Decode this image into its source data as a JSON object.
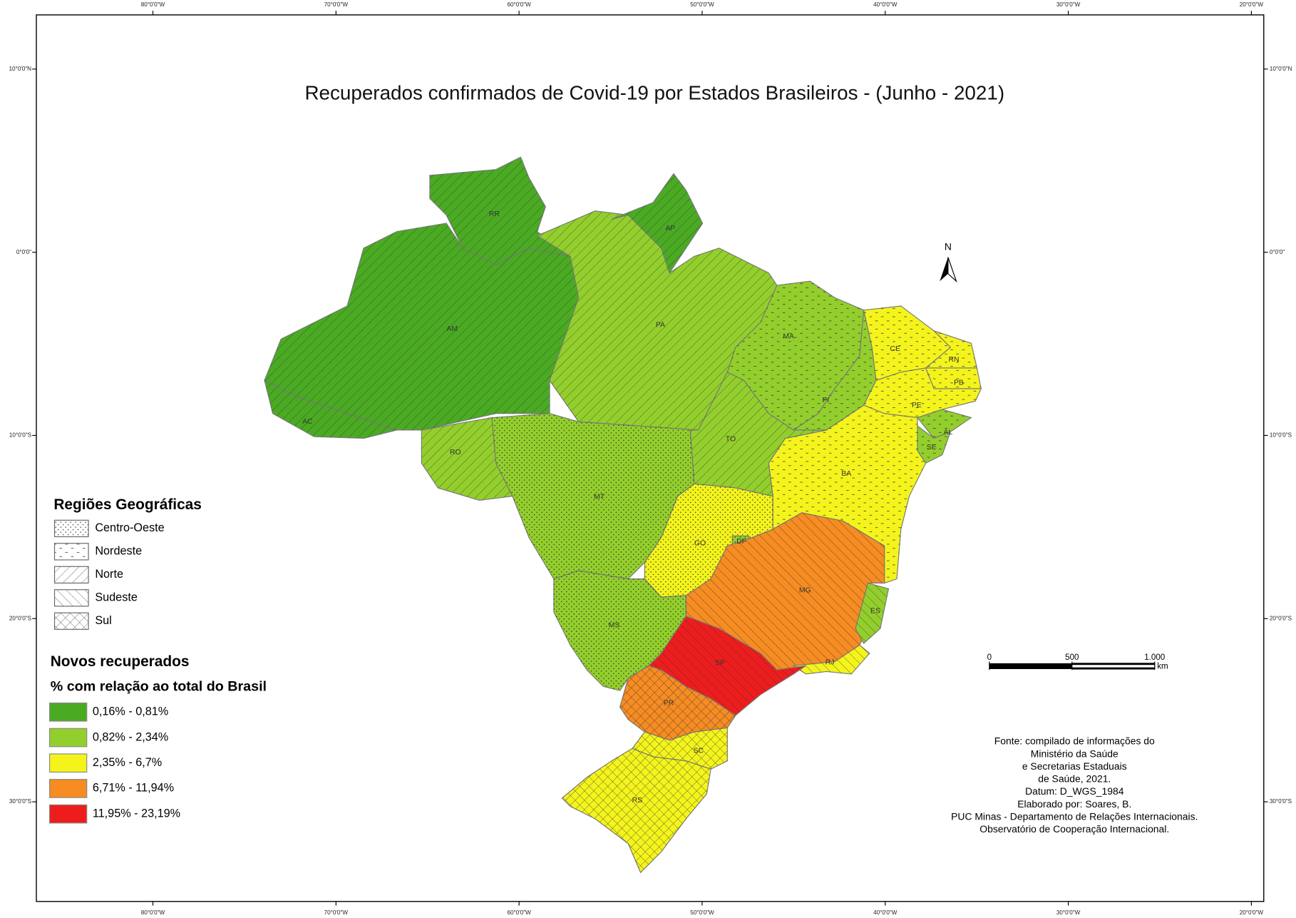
{
  "title": "Recuperados confirmados de Covid-19 por Estados Brasileiros - (Junho - 2021)",
  "graticule": {
    "longitudes": [
      {
        "value": -80,
        "label": "80°0'0\"W"
      },
      {
        "value": -70,
        "label": "70°0'0\"W"
      },
      {
        "value": -60,
        "label": "60°0'0\"W"
      },
      {
        "value": -50,
        "label": "50°0'0\"W"
      },
      {
        "value": -40,
        "label": "40°0'0\"W"
      },
      {
        "value": -30,
        "label": "30°0'0\"W"
      },
      {
        "value": -20,
        "label": "20°0'0\"W"
      }
    ],
    "latitudes": [
      {
        "value": 10,
        "label": "10°0'0\"N"
      },
      {
        "value": 0,
        "label": "0°0'0\""
      },
      {
        "value": -10,
        "label": "10°0'0\"S"
      },
      {
        "value": -20,
        "label": "20°0'0\"S"
      },
      {
        "value": -30,
        "label": "30°0'0\"S"
      }
    ]
  },
  "regions_legend": {
    "title": "Regiões Geográficas",
    "regions": [
      "Centro-Oeste",
      "Nordeste",
      "Norte",
      "Sudeste",
      "Sul"
    ]
  },
  "classes_legend": {
    "title": "Novos recuperados",
    "subtitle": "% com relação ao total do Brasil",
    "classes": [
      {
        "label": "0,16% - 0,81%",
        "color": "#4aab23"
      },
      {
        "label": "0,82% - 2,34%",
        "color": "#93cf2c"
      },
      {
        "label": "2,35% - 6,7%",
        "color": "#f4f41c"
      },
      {
        "label": "6,71% - 11,94%",
        "color": "#f68c22"
      },
      {
        "label": "11,95% - 23,19%",
        "color": "#ee1d1d"
      }
    ]
  },
  "states": [
    {
      "label": "RR",
      "class": 0,
      "region": 2
    },
    {
      "label": "AM",
      "class": 0,
      "region": 2
    },
    {
      "label": "AC",
      "class": 0,
      "region": 2
    },
    {
      "label": "PA",
      "class": 1,
      "region": 2
    },
    {
      "label": "AP",
      "class": 0,
      "region": 2
    },
    {
      "label": "MA",
      "class": 1,
      "region": 1
    },
    {
      "label": "PI",
      "class": 1,
      "region": 1
    },
    {
      "label": "CE",
      "class": 2,
      "region": 1
    },
    {
      "label": "RN",
      "class": 2,
      "region": 1
    },
    {
      "label": "PB",
      "class": 2,
      "region": 1
    },
    {
      "label": "PE",
      "class": 2,
      "region": 1
    },
    {
      "label": "AL",
      "class": 1,
      "region": 1
    },
    {
      "label": "SE",
      "class": 1,
      "region": 1
    },
    {
      "label": "BA",
      "class": 2,
      "region": 1
    },
    {
      "label": "TO",
      "class": 1,
      "region": 2
    },
    {
      "label": "MT",
      "class": 1,
      "region": 0
    },
    {
      "label": "RO",
      "class": 1,
      "region": 2
    },
    {
      "label": "GO",
      "class": 2,
      "region": 0
    },
    {
      "label": "DF",
      "class": 1,
      "region": 0
    },
    {
      "label": "MS",
      "class": 1,
      "region": 0
    },
    {
      "label": "MG",
      "class": 3,
      "region": 3
    },
    {
      "label": "ES",
      "class": 1,
      "region": 3
    },
    {
      "label": "RJ",
      "class": 2,
      "region": 3
    },
    {
      "label": "SP",
      "class": 4,
      "region": 3
    },
    {
      "label": "PR",
      "class": 3,
      "region": 4
    },
    {
      "label": "SC",
      "class": 2,
      "region": 4
    },
    {
      "label": "RS",
      "class": 2,
      "region": 4
    }
  ],
  "north": "N",
  "scale_bar": {
    "ticks": [
      0,
      500,
      {
        "value": 1000,
        "label": "1.000"
      }
    ],
    "unit": "km"
  },
  "source": [
    "Fonte: compilado de informações do",
    "Ministério da Saúde",
    "e Secretarias Estaduais",
    "de Saúde, 2021.",
    "Datum: D_WGS_1984",
    "Elaborado por: Soares, B.",
    "PUC Minas - Departamento de Relações Internacionais.",
    "Observatório de Cooperação Internacional."
  ]
}
